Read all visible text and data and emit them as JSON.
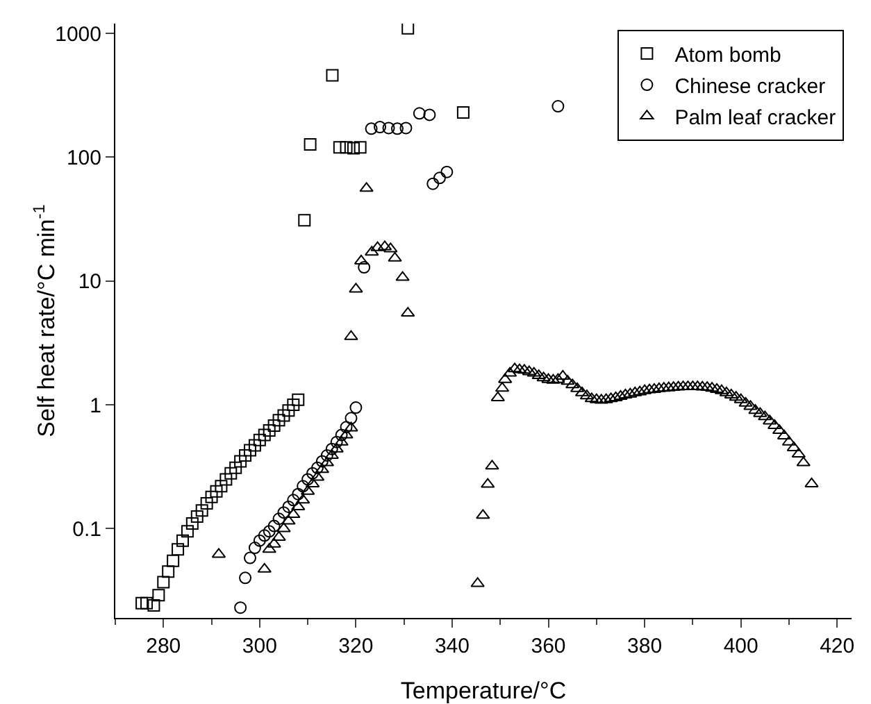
{
  "chart_data": {
    "type": "scatter",
    "xlabel": "Temperature/°C",
    "ylabel": "Self heat rate/°C min$^{-1}$",
    "log": "y",
    "xlim": [
      270,
      423
    ],
    "xticks": [
      280,
      300,
      320,
      340,
      360,
      380,
      400,
      420
    ],
    "ylim": [
      0.019,
      1200
    ],
    "yticks": [
      0.1,
      1,
      10,
      100,
      1000
    ],
    "grid": false,
    "legend": "top right",
    "series": [
      {
        "name": "Atom bomb",
        "color": "#000000",
        "marker": "square",
        "x": [
          275.5,
          276.5,
          278,
          279,
          280,
          281,
          282,
          283,
          284,
          285,
          286,
          287,
          288,
          289,
          290,
          291,
          292,
          293,
          294,
          295,
          296,
          297,
          298,
          299,
          300,
          301,
          302,
          303,
          304,
          305,
          306,
          307,
          308,
          309.3,
          310.5,
          315.1,
          316.6,
          318,
          319.5,
          320.9,
          330.8,
          342.3
        ],
        "values": [
          0.025,
          0.025,
          0.024,
          0.029,
          0.037,
          0.045,
          0.055,
          0.068,
          0.08,
          0.095,
          0.11,
          0.125,
          0.14,
          0.16,
          0.18,
          0.2,
          0.22,
          0.25,
          0.28,
          0.31,
          0.35,
          0.39,
          0.43,
          0.47,
          0.52,
          0.57,
          0.62,
          0.68,
          0.75,
          0.82,
          0.9,
          1.0,
          1.1,
          31,
          127,
          458,
          120,
          120,
          118,
          120,
          1100,
          230
        ]
      },
      {
        "name": "Chinese cracker",
        "color": "#000000",
        "marker": "circle",
        "x": [
          296,
          297,
          298,
          299,
          300,
          301,
          302,
          303,
          304,
          305,
          306,
          307,
          308,
          309,
          310,
          311,
          312,
          313,
          314,
          315,
          316,
          317,
          318,
          319,
          320,
          321.7,
          323.2,
          325,
          326.8,
          328.6,
          330.4,
          333.2,
          335.3,
          336,
          337.4,
          338.9,
          362
        ],
        "values": [
          0.023,
          0.04,
          0.058,
          0.07,
          0.08,
          0.088,
          0.095,
          0.105,
          0.12,
          0.135,
          0.15,
          0.17,
          0.19,
          0.22,
          0.25,
          0.28,
          0.31,
          0.35,
          0.39,
          0.44,
          0.5,
          0.57,
          0.66,
          0.78,
          0.95,
          12.9,
          170,
          175,
          172,
          170,
          172,
          226,
          220,
          61,
          68,
          76,
          258
        ]
      },
      {
        "name": "Palm leaf cracker",
        "color": "#000000",
        "marker": "triangle",
        "x": [
          291.5,
          301,
          302,
          303,
          304,
          305,
          306,
          307,
          308,
          309,
          310,
          311,
          312,
          313,
          314,
          315,
          316,
          317,
          318,
          319,
          319,
          320,
          321.1,
          322.2,
          323.3,
          324.5,
          326,
          327.2,
          328.1,
          329.7,
          330.8,
          345.3,
          346.4,
          347.4,
          348.3,
          349.5,
          350.4,
          351,
          352,
          353,
          354,
          355,
          356,
          357,
          358,
          359,
          360,
          361,
          362,
          363,
          364,
          365,
          366,
          367,
          368,
          369,
          370,
          371,
          372,
          373,
          374,
          375,
          376,
          377,
          378,
          379,
          380,
          381,
          382,
          383,
          384,
          385,
          386,
          387,
          388,
          389,
          390,
          391,
          392,
          393,
          394,
          395,
          396,
          397,
          398,
          399,
          400,
          401,
          402,
          403,
          404,
          405,
          406,
          407,
          408,
          409,
          410,
          411,
          412,
          413,
          414.7
        ],
        "values": [
          0.062,
          0.047,
          0.068,
          0.075,
          0.085,
          0.1,
          0.115,
          0.13,
          0.15,
          0.17,
          0.2,
          0.23,
          0.26,
          0.3,
          0.34,
          0.39,
          0.44,
          0.5,
          0.57,
          0.65,
          3.56,
          8.6,
          14.5,
          56,
          17.1,
          18.6,
          18.9,
          18.2,
          15.3,
          10.7,
          5.5,
          0.036,
          0.128,
          0.228,
          0.32,
          1.14,
          1.36,
          1.6,
          1.8,
          1.95,
          1.92,
          1.9,
          1.85,
          1.8,
          1.72,
          1.65,
          1.6,
          1.58,
          1.6,
          1.7,
          1.55,
          1.45,
          1.35,
          1.25,
          1.18,
          1.12,
          1.1,
          1.09,
          1.1,
          1.12,
          1.14,
          1.17,
          1.2,
          1.22,
          1.25,
          1.27,
          1.3,
          1.32,
          1.33,
          1.35,
          1.36,
          1.37,
          1.38,
          1.39,
          1.4,
          1.4,
          1.4,
          1.4,
          1.39,
          1.38,
          1.36,
          1.33,
          1.3,
          1.25,
          1.2,
          1.15,
          1.1,
          1.03,
          0.97,
          0.9,
          0.85,
          0.8,
          0.74,
          0.68,
          0.62,
          0.56,
          0.5,
          0.45,
          0.4,
          0.34,
          0.23
        ]
      }
    ]
  }
}
